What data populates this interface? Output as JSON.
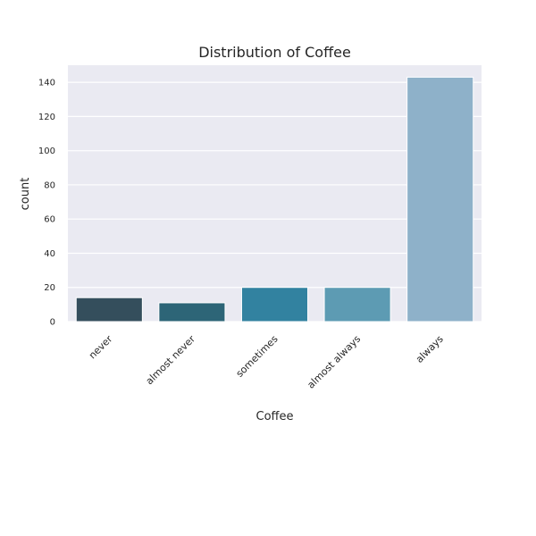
{
  "chart_data": {
    "type": "bar",
    "title": "Distribution of Coffee",
    "xlabel": "Coffee",
    "ylabel": "count",
    "categories": [
      "never",
      "almost never",
      "sometimes",
      "almost always",
      "always"
    ],
    "values": [
      14,
      11,
      20,
      20,
      143
    ],
    "ylim": [
      0,
      150
    ],
    "yticks": [
      0,
      20,
      40,
      60,
      80,
      100,
      120,
      140
    ],
    "colors": [
      "#344e5c",
      "#2d6577",
      "#3282a0",
      "#5d9bb3",
      "#8eb1c9"
    ],
    "background": "#eaeaf2",
    "grid": true
  }
}
